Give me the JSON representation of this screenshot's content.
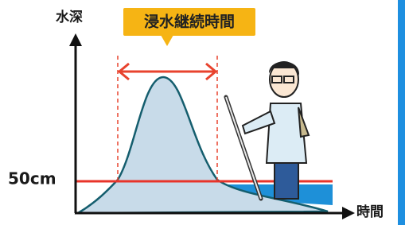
{
  "axis": {
    "y_label": "水深",
    "x_label": "時間"
  },
  "callout": {
    "label": "浸水継続時間"
  },
  "threshold": {
    "label": "50cm"
  }
}
